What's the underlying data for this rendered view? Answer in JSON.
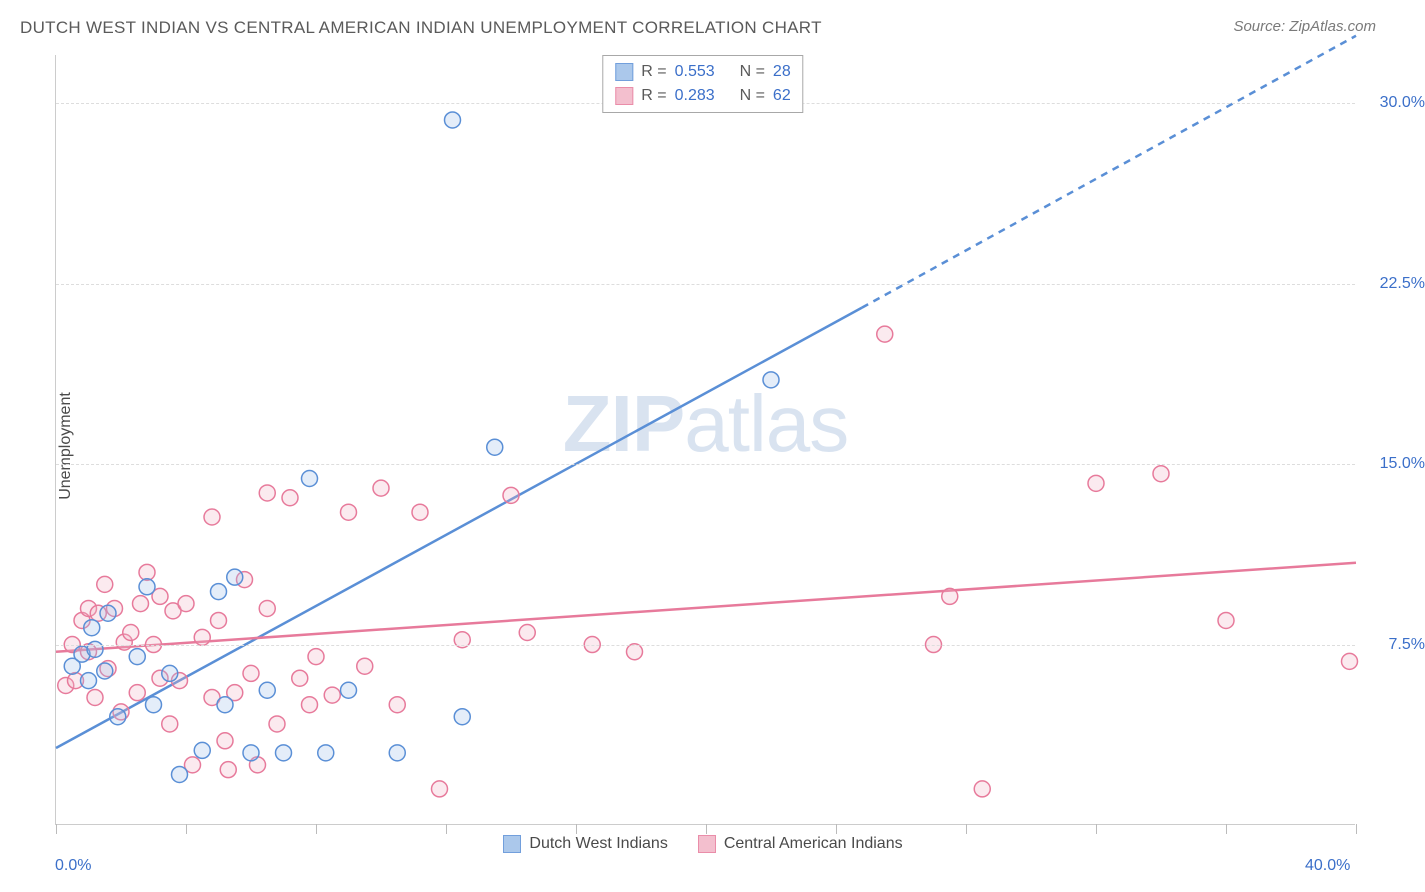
{
  "title": "DUTCH WEST INDIAN VS CENTRAL AMERICAN INDIAN UNEMPLOYMENT CORRELATION CHART",
  "source": "Source: ZipAtlas.com",
  "watermark_bold": "ZIP",
  "watermark_rest": "atlas",
  "y_axis_label": "Unemployment",
  "chart": {
    "type": "scatter",
    "background_color": "#ffffff",
    "grid_color": "#dddddd",
    "axis_color": "#cccccc",
    "tick_label_color": "#3b6fc9",
    "xlim": [
      0,
      40
    ],
    "ylim": [
      0,
      32
    ],
    "x_origin_label": "0.0%",
    "x_end_label": "40.0%",
    "x_ticks": [
      0,
      4,
      8,
      12,
      16,
      20,
      24,
      28,
      32,
      36,
      40
    ],
    "y_ticks": [
      {
        "v": 7.5,
        "label": "7.5%"
      },
      {
        "v": 15.0,
        "label": "15.0%"
      },
      {
        "v": 22.5,
        "label": "22.5%"
      },
      {
        "v": 30.0,
        "label": "30.0%"
      }
    ],
    "marker_radius": 8,
    "marker_stroke_width": 1.5,
    "marker_fill_opacity": 0.28,
    "trend_line_width": 2.5,
    "series": [
      {
        "name": "Dutch West Indians",
        "color_stroke": "#5a8fd6",
        "color_fill": "#9dbfe8",
        "r": "0.553",
        "n": "28",
        "trend": {
          "x1": 0,
          "y1": 3.2,
          "x2": 24.8,
          "y2": 21.5,
          "x2_ext": 40,
          "y2_ext": 32.8,
          "dash_from_x": 24.8
        },
        "points": [
          [
            0.5,
            6.6
          ],
          [
            0.8,
            7.1
          ],
          [
            1.0,
            6.0
          ],
          [
            1.1,
            8.2
          ],
          [
            1.2,
            7.3
          ],
          [
            1.5,
            6.4
          ],
          [
            1.6,
            8.8
          ],
          [
            1.9,
            4.5
          ],
          [
            2.5,
            7.0
          ],
          [
            2.8,
            9.9
          ],
          [
            3.0,
            5.0
          ],
          [
            3.5,
            6.3
          ],
          [
            3.8,
            2.1
          ],
          [
            4.5,
            3.1
          ],
          [
            5.0,
            9.7
          ],
          [
            5.2,
            5.0
          ],
          [
            5.5,
            10.3
          ],
          [
            6.0,
            3.0
          ],
          [
            6.5,
            5.6
          ],
          [
            7.0,
            3.0
          ],
          [
            7.8,
            14.4
          ],
          [
            8.3,
            3.0
          ],
          [
            9.0,
            5.6
          ],
          [
            10.5,
            3.0
          ],
          [
            12.2,
            29.3
          ],
          [
            12.5,
            4.5
          ],
          [
            13.5,
            15.7
          ],
          [
            22.0,
            18.5
          ]
        ]
      },
      {
        "name": "Central American Indians",
        "color_stroke": "#e77a9b",
        "color_fill": "#f2b5c6",
        "r": "0.283",
        "n": "62",
        "trend": {
          "x1": 0,
          "y1": 7.2,
          "x2": 40,
          "y2": 10.9
        },
        "points": [
          [
            0.3,
            5.8
          ],
          [
            0.5,
            7.5
          ],
          [
            0.6,
            6.0
          ],
          [
            0.8,
            8.5
          ],
          [
            1.0,
            9.0
          ],
          [
            1.0,
            7.2
          ],
          [
            1.2,
            5.3
          ],
          [
            1.3,
            8.8
          ],
          [
            1.5,
            10.0
          ],
          [
            1.6,
            6.5
          ],
          [
            1.8,
            9.0
          ],
          [
            2.0,
            4.7
          ],
          [
            2.1,
            7.6
          ],
          [
            2.3,
            8.0
          ],
          [
            2.5,
            5.5
          ],
          [
            2.6,
            9.2
          ],
          [
            2.8,
            10.5
          ],
          [
            3.0,
            7.5
          ],
          [
            3.2,
            9.5
          ],
          [
            3.5,
            4.2
          ],
          [
            3.6,
            8.9
          ],
          [
            3.8,
            6.0
          ],
          [
            4.0,
            9.2
          ],
          [
            4.2,
            2.5
          ],
          [
            4.5,
            7.8
          ],
          [
            4.8,
            5.3
          ],
          [
            5.0,
            8.5
          ],
          [
            5.3,
            2.3
          ],
          [
            5.5,
            5.5
          ],
          [
            5.8,
            10.2
          ],
          [
            6.0,
            6.3
          ],
          [
            6.2,
            2.5
          ],
          [
            6.5,
            9.0
          ],
          [
            6.8,
            4.2
          ],
          [
            7.2,
            13.6
          ],
          [
            7.5,
            6.1
          ],
          [
            7.8,
            5.0
          ],
          [
            8.0,
            7.0
          ],
          [
            8.5,
            5.4
          ],
          [
            9.0,
            13.0
          ],
          [
            9.5,
            6.6
          ],
          [
            10.0,
            14.0
          ],
          [
            10.5,
            5.0
          ],
          [
            11.2,
            13.0
          ],
          [
            11.8,
            1.5
          ],
          [
            12.5,
            7.7
          ],
          [
            14.0,
            13.7
          ],
          [
            14.5,
            8.0
          ],
          [
            16.5,
            7.5
          ],
          [
            17.8,
            7.2
          ],
          [
            25.5,
            20.4
          ],
          [
            27.0,
            7.5
          ],
          [
            27.5,
            9.5
          ],
          [
            28.5,
            1.5
          ],
          [
            32.0,
            14.2
          ],
          [
            34.0,
            14.6
          ],
          [
            36.0,
            8.5
          ],
          [
            39.8,
            6.8
          ],
          [
            5.2,
            3.5
          ],
          [
            6.5,
            13.8
          ],
          [
            3.2,
            6.1
          ],
          [
            4.8,
            12.8
          ]
        ]
      }
    ]
  },
  "legend_bottom": {
    "series1_label": "Dutch West Indians",
    "series2_label": "Central American Indians"
  },
  "legend_top": {
    "r_label": "R =",
    "n_label": "N ="
  }
}
